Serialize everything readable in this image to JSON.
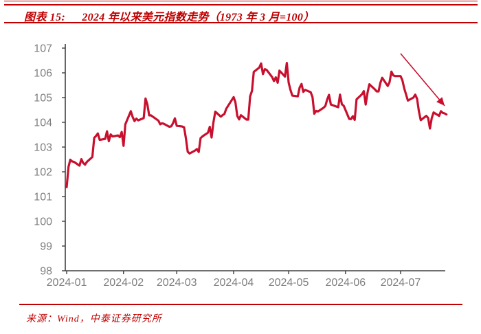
{
  "header": {
    "figure_label": "图表 15:",
    "title": "2024 年以来美元指数走势（1973 年 3 月=100）"
  },
  "footer": {
    "source": "来源：Wind，中泰证券研究所"
  },
  "colors": {
    "accent_red": "#c00000",
    "line_red": "#c8102e",
    "axis": "#404040",
    "tick_label": "#7f7f7f"
  },
  "chart_data": {
    "type": "line",
    "title": "2024 年以来美元指数走势",
    "series_name": "美元指数（1973 年 3 月=100）",
    "ylim": [
      98,
      107
    ],
    "y_ticks": [
      98,
      99,
      100,
      101,
      102,
      103,
      104,
      105,
      106,
      107
    ],
    "x_tick_labels": [
      "2024-01",
      "2024-02",
      "2024-03",
      "2024-04",
      "2024-05",
      "2024-06",
      "2024-07"
    ],
    "x_tick_days": [
      0,
      31,
      60,
      91,
      121,
      152,
      182
    ],
    "grid": false,
    "legend": "none",
    "dates": [
      "2024-01-01",
      "2024-01-02",
      "2024-01-03",
      "2024-01-04",
      "2024-01-05",
      "2024-01-08",
      "2024-01-09",
      "2024-01-10",
      "2024-01-11",
      "2024-01-12",
      "2024-01-15",
      "2024-01-16",
      "2024-01-17",
      "2024-01-18",
      "2024-01-19",
      "2024-01-22",
      "2024-01-23",
      "2024-01-24",
      "2024-01-25",
      "2024-01-26",
      "2024-01-29",
      "2024-01-30",
      "2024-01-31",
      "2024-02-01",
      "2024-02-02",
      "2024-02-05",
      "2024-02-06",
      "2024-02-07",
      "2024-02-08",
      "2024-02-09",
      "2024-02-12",
      "2024-02-13",
      "2024-02-14",
      "2024-02-15",
      "2024-02-16",
      "2024-02-20",
      "2024-02-21",
      "2024-02-22",
      "2024-02-23",
      "2024-02-26",
      "2024-02-27",
      "2024-02-28",
      "2024-02-29",
      "2024-03-01",
      "2024-03-04",
      "2024-03-05",
      "2024-03-06",
      "2024-03-07",
      "2024-03-08",
      "2024-03-11",
      "2024-03-12",
      "2024-03-13",
      "2024-03-14",
      "2024-03-15",
      "2024-03-18",
      "2024-03-19",
      "2024-03-20",
      "2024-03-21",
      "2024-03-22",
      "2024-03-25",
      "2024-03-26",
      "2024-03-27",
      "2024-03-28",
      "2024-04-01",
      "2024-04-02",
      "2024-04-03",
      "2024-04-04",
      "2024-04-05",
      "2024-04-08",
      "2024-04-09",
      "2024-04-10",
      "2024-04-11",
      "2024-04-12",
      "2024-04-15",
      "2024-04-16",
      "2024-04-17",
      "2024-04-18",
      "2024-04-19",
      "2024-04-22",
      "2024-04-23",
      "2024-04-24",
      "2024-04-25",
      "2024-04-26",
      "2024-04-29",
      "2024-04-30",
      "2024-05-01",
      "2024-05-02",
      "2024-05-03",
      "2024-05-06",
      "2024-05-07",
      "2024-05-08",
      "2024-05-09",
      "2024-05-10",
      "2024-05-13",
      "2024-05-14",
      "2024-05-15",
      "2024-05-16",
      "2024-05-17",
      "2024-05-20",
      "2024-05-21",
      "2024-05-22",
      "2024-05-23",
      "2024-05-24",
      "2024-05-28",
      "2024-05-29",
      "2024-05-30",
      "2024-05-31",
      "2024-06-03",
      "2024-06-04",
      "2024-06-05",
      "2024-06-06",
      "2024-06-07",
      "2024-06-10",
      "2024-06-11",
      "2024-06-12",
      "2024-06-13",
      "2024-06-14",
      "2024-06-17",
      "2024-06-18",
      "2024-06-19",
      "2024-06-20",
      "2024-06-21",
      "2024-06-24",
      "2024-06-25",
      "2024-06-26",
      "2024-06-27",
      "2024-06-28",
      "2024-07-01",
      "2024-07-02",
      "2024-07-03",
      "2024-07-05",
      "2024-07-08",
      "2024-07-09",
      "2024-07-10",
      "2024-07-11",
      "2024-07-12",
      "2024-07-15",
      "2024-07-16",
      "2024-07-17",
      "2024-07-18",
      "2024-07-19",
      "2024-07-22",
      "2024-07-23",
      "2024-07-24",
      "2024-07-25",
      "2024-07-26"
    ],
    "values": [
      101.38,
      102.2,
      102.49,
      102.42,
      102.4,
      102.25,
      102.51,
      102.36,
      102.29,
      102.4,
      102.6,
      103.37,
      103.45,
      103.55,
      103.29,
      103.33,
      103.64,
      103.24,
      103.51,
      103.43,
      103.47,
      103.4,
      103.61,
      103.05,
      103.92,
      104.45,
      104.21,
      104.05,
      104.15,
      104.08,
      104.17,
      104.96,
      104.72,
      104.28,
      104.28,
      104.07,
      103.92,
      103.96,
      103.94,
      103.82,
      103.84,
      103.97,
      104.16,
      103.86,
      103.83,
      103.8,
      103.36,
      102.81,
      102.74,
      102.86,
      102.92,
      102.8,
      103.36,
      103.43,
      103.58,
      103.82,
      103.39,
      104.0,
      104.43,
      104.23,
      104.29,
      104.34,
      104.55,
      105.02,
      104.81,
      104.26,
      104.12,
      104.29,
      104.11,
      104.11,
      105.05,
      105.27,
      106.04,
      106.21,
      106.38,
      105.95,
      106.15,
      106.12,
      105.83,
      105.67,
      105.82,
      105.6,
      106.09,
      105.85,
      106.4,
      105.6,
      105.31,
      105.08,
      105.05,
      105.41,
      105.55,
      105.23,
      105.31,
      105.22,
      105.02,
      104.35,
      104.46,
      104.44,
      104.59,
      104.66,
      104.92,
      105.11,
      104.72,
      104.61,
      105.12,
      104.73,
      104.67,
      104.14,
      104.13,
      104.25,
      104.1,
      104.93,
      105.14,
      105.26,
      104.72,
      105.2,
      105.54,
      105.33,
      105.25,
      105.25,
      105.6,
      105.8,
      105.47,
      105.62,
      106.05,
      105.9,
      105.87,
      105.87,
      105.7,
      105.37,
      104.88,
      105.0,
      105.12,
      104.95,
      104.45,
      104.09,
      104.26,
      104.18,
      103.75,
      104.17,
      104.4,
      104.26,
      104.45,
      104.38,
      104.36,
      104.32
    ],
    "annotation_arrow": {
      "x1_day": 182,
      "y1": 106.78,
      "x2_day": 206,
      "y2": 104.67
    }
  }
}
